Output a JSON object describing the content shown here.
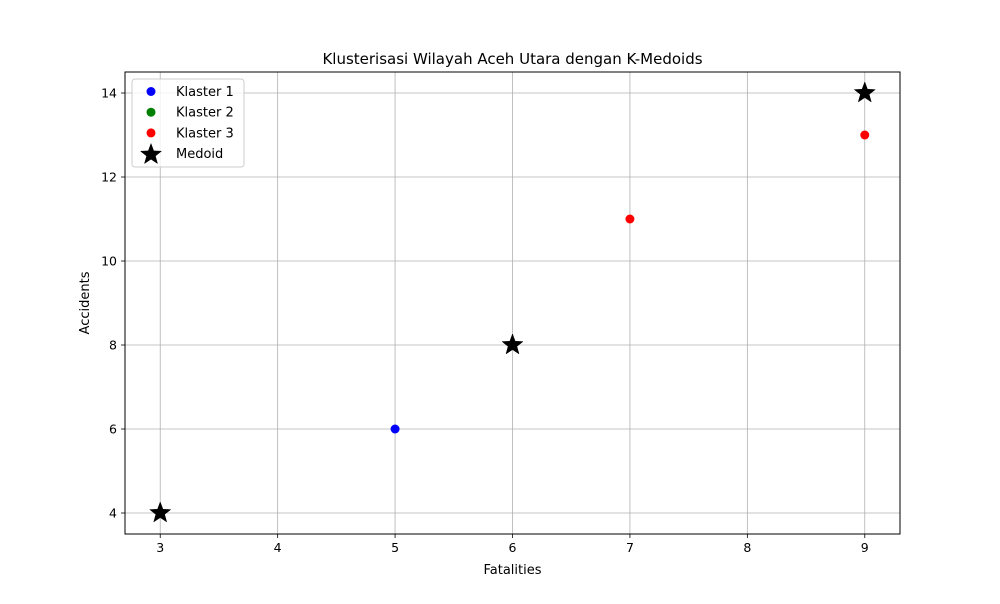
{
  "chart_data": {
    "type": "scatter",
    "title": "Klusterisasi Wilayah Aceh Utara dengan K-Medoids",
    "xlabel": "Fatalities",
    "ylabel": "Accidents",
    "xlim": [
      2.7,
      9.3
    ],
    "ylim": [
      3.5,
      14.5
    ],
    "xticks": [
      3,
      4,
      5,
      6,
      7,
      8,
      9
    ],
    "yticks": [
      4,
      6,
      8,
      10,
      12,
      14
    ],
    "grid": true,
    "legend_position": "top-left",
    "series": [
      {
        "name": "Klaster 1",
        "color": "#0000ff",
        "marker": "circle",
        "points": [
          [
            5,
            6
          ]
        ]
      },
      {
        "name": "Klaster 2",
        "color": "#008000",
        "marker": "circle",
        "points": []
      },
      {
        "name": "Klaster 3",
        "color": "#ff0000",
        "marker": "circle",
        "points": [
          [
            7,
            11
          ],
          [
            9,
            13
          ]
        ]
      },
      {
        "name": "Medoid",
        "color": "#000000",
        "marker": "star",
        "points": [
          [
            3,
            4
          ],
          [
            6,
            8
          ],
          [
            9,
            14
          ]
        ]
      }
    ]
  }
}
